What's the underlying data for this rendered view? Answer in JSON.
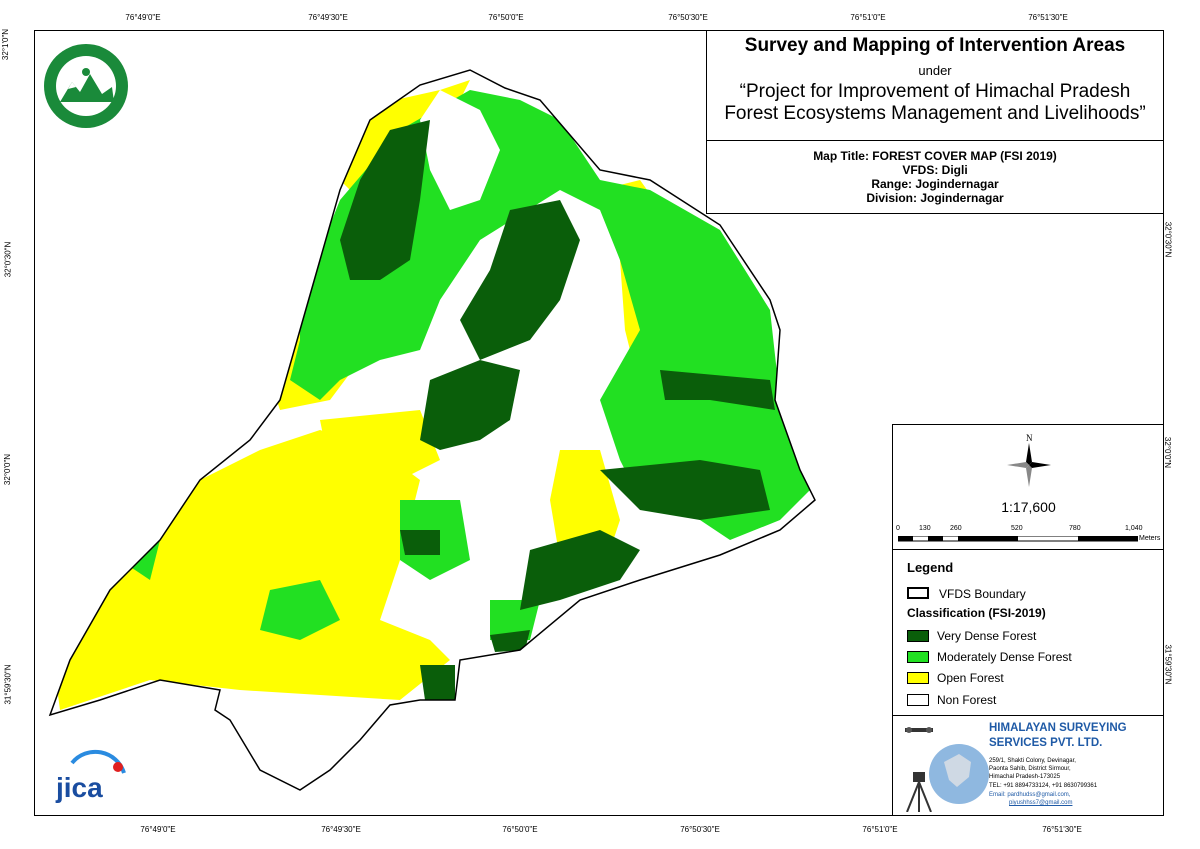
{
  "graticule": {
    "top_labels": [
      "76°49'0\"E",
      "76°49'30\"E",
      "76°50'0\"E",
      "76°50'30\"E",
      "76°51'0\"E",
      "76°51'30\"E"
    ],
    "bottom_labels": [
      "76°49'0\"E",
      "76°49'30\"E",
      "76°50'0\"E",
      "76°50'30\"E",
      "76°51'0\"E",
      "76°51'30\"E"
    ],
    "left_labels": [
      "32°1'0\"N",
      "32°0'30\"N",
      "32°0'0\"N",
      "31°59'30\"N"
    ],
    "right_labels": [
      "32°0'30\"N",
      "32°0'0\"N",
      "31°59'30\"N"
    ]
  },
  "header": {
    "title": "Survey and Mapping of Intervention Areas",
    "under": "under",
    "project_line1": "“Project for Improvement of Himachal Pradesh",
    "project_line2": "Forest Ecosystems Management and Livelihoods”"
  },
  "info": {
    "map_title": "Map Title: FOREST COVER MAP (FSI 2019)",
    "vfds": "VFDS: Digli",
    "range": "Range: Jogindernagar",
    "division": "Division: Jogindernagar"
  },
  "north": {
    "label": "N"
  },
  "scale": {
    "ratio": "1:17,600",
    "ticks": [
      "0",
      "130",
      "260",
      "520",
      "780",
      "1,040"
    ],
    "unit": "Meters"
  },
  "legend": {
    "title": "Legend",
    "boundary": "VFDS Boundary",
    "classification_title": "Classification (FSI-2019)",
    "classes": [
      {
        "label": "Very Dense Forest",
        "color": "#0a5e0a"
      },
      {
        "label": "Moderately Dense Forest",
        "color": "#22e022"
      },
      {
        "label": "Open Forest",
        "color": "#ffff00"
      },
      {
        "label": "Non Forest",
        "color": "#ffffff"
      }
    ]
  },
  "company": {
    "name_line1": "HIMALAYAN SURVEYING",
    "name_line2": "SERVICES PVT. LTD.",
    "addr1": "259/1, Shakti Colony, Devinagar,",
    "addr2": "Paonta Sahib, District Sirmour,",
    "addr3": "Himachal Pradesh-173025",
    "tel": "TEL: +91 8894733124, +91 8630799361",
    "email": "Email: pardhudss@gmail.com,",
    "email2": "piyushhss7@gmail.com"
  },
  "logos": {
    "jica": "jica",
    "hp_forest": "hp-forest-department-logo"
  }
}
